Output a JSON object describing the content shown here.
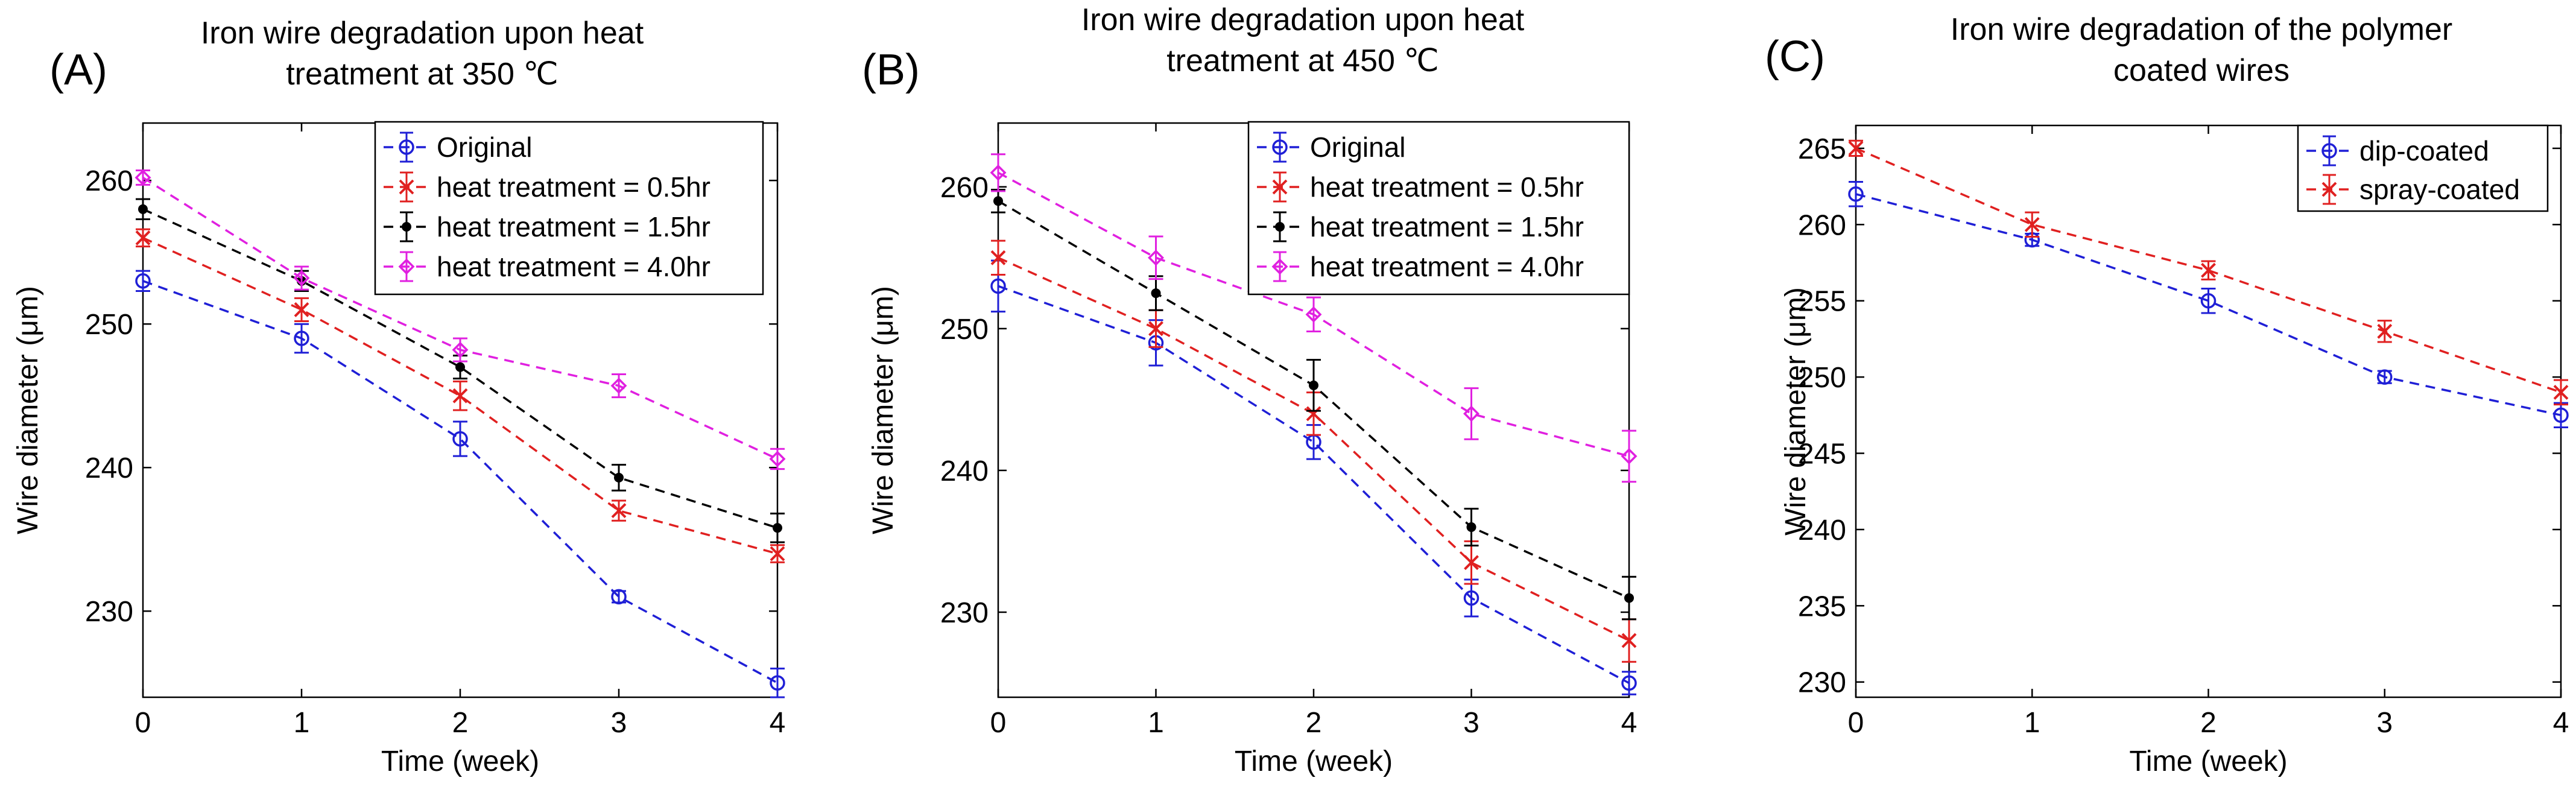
{
  "chart_data": [
    {
      "panel_label": "(A)",
      "type": "line",
      "title": [
        "Iron wire degradation upon heat",
        "treatment at 350 ℃"
      ],
      "xlabel": "Time (week)",
      "ylabel": "Wire diameter (μm)",
      "xlim": [
        0,
        4
      ],
      "ylim": [
        224,
        264
      ],
      "xticks": [
        0,
        1,
        2,
        3,
        4
      ],
      "yticks": [
        230,
        240,
        250,
        260
      ],
      "legend_position": "top-right",
      "x": [
        0,
        1,
        2,
        3,
        4
      ],
      "series": [
        {
          "name": "Original",
          "color": "#1f1fd6",
          "marker": "circle",
          "values": [
            253,
            249,
            242,
            231,
            225
          ],
          "errors": [
            0.7,
            1.0,
            1.2,
            0.4,
            1.0
          ]
        },
        {
          "name": "heat treatment = 0.5hr",
          "color": "#e02020",
          "marker": "x",
          "values": [
            256,
            251,
            245,
            237,
            234
          ],
          "errors": [
            0.6,
            0.8,
            1.0,
            0.7,
            0.6
          ]
        },
        {
          "name": "heat treatment = 1.5hr",
          "color": "#000000",
          "marker": "dot",
          "values": [
            258,
            253,
            247,
            239.3,
            235.8
          ],
          "errors": [
            0.7,
            0.7,
            0.8,
            0.9,
            1.0
          ]
        },
        {
          "name": "heat treatment = 4.0hr",
          "color": "#e020e0",
          "marker": "diamond",
          "values": [
            260.2,
            253.2,
            248.2,
            245.7,
            240.6
          ],
          "errors": [
            0.5,
            0.8,
            0.8,
            0.8,
            0.7
          ]
        }
      ]
    },
    {
      "panel_label": "(B)",
      "type": "line",
      "title": [
        "Iron wire degradation upon heat",
        "treatment at 450 ℃"
      ],
      "xlabel": "Time (week)",
      "ylabel": "Wire diameter (μm)",
      "xlim": [
        0,
        4
      ],
      "ylim": [
        224,
        264.5
      ],
      "xticks": [
        0,
        1,
        2,
        3,
        4
      ],
      "yticks": [
        230,
        240,
        250,
        260
      ],
      "legend_position": "top-right",
      "x": [
        0,
        1,
        2,
        3,
        4
      ],
      "series": [
        {
          "name": "Original",
          "color": "#1f1fd6",
          "marker": "circle",
          "values": [
            253,
            249,
            242,
            231,
            225
          ],
          "errors": [
            1.8,
            1.6,
            1.2,
            1.3,
            0.8
          ]
        },
        {
          "name": "heat treatment = 0.5hr",
          "color": "#e02020",
          "marker": "x",
          "values": [
            255,
            250,
            244,
            233.5,
            228
          ],
          "errors": [
            1.2,
            1.3,
            1.5,
            1.5,
            1.5
          ]
        },
        {
          "name": "heat treatment = 1.5hr",
          "color": "#000000",
          "marker": "dot",
          "values": [
            259,
            252.5,
            246,
            236,
            231
          ],
          "errors": [
            0.8,
            1.2,
            1.8,
            1.3,
            1.5
          ]
        },
        {
          "name": "heat treatment = 4.0hr",
          "color": "#e020e0",
          "marker": "diamond",
          "values": [
            261,
            255,
            251,
            244,
            241
          ],
          "errors": [
            1.3,
            1.5,
            1.2,
            1.8,
            1.8
          ]
        }
      ]
    },
    {
      "panel_label": "(C)",
      "type": "line",
      "title": [
        "Iron wire degradation of the polymer",
        "coated wires"
      ],
      "xlabel": "Time (week)",
      "ylabel": "Wire diameter (μm)",
      "xlim": [
        0,
        4
      ],
      "ylim": [
        229,
        266.5
      ],
      "xticks": [
        0,
        1,
        2,
        3,
        4
      ],
      "yticks": [
        230,
        235,
        240,
        245,
        250,
        255,
        260,
        265
      ],
      "legend_position": "top-right",
      "x": [
        0,
        1,
        2,
        3,
        4
      ],
      "series": [
        {
          "name": "dip-coated",
          "color": "#1f1fd6",
          "marker": "circle",
          "values": [
            262,
            259,
            255,
            250,
            247.5
          ],
          "errors": [
            0.8,
            0.4,
            0.8,
            0.4,
            0.8
          ]
        },
        {
          "name": "spray-coated",
          "color": "#e02020",
          "marker": "x",
          "values": [
            265,
            260,
            257,
            253,
            249
          ],
          "errors": [
            0.5,
            0.8,
            0.6,
            0.7,
            0.8
          ]
        }
      ]
    }
  ]
}
